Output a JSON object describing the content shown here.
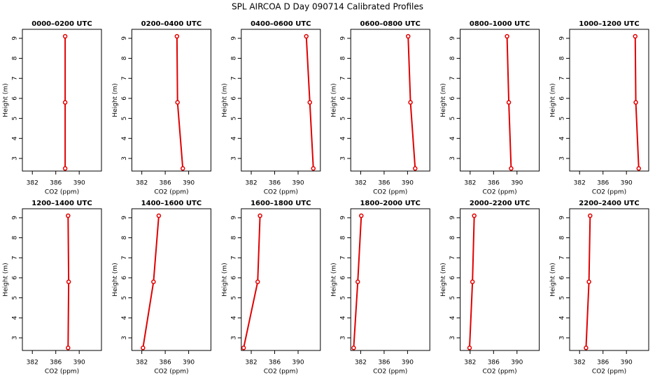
{
  "title": "SPL AIRCOA D  Day 090714  Calibrated Profiles",
  "chart_data": [
    {
      "type": "line",
      "title": "0000–0200 UTC",
      "xlabel": "CO2 (ppm)",
      "ylabel": "Height (m)",
      "color": "#e00000",
      "x": [
        387.6,
        387.6,
        387.6
      ],
      "values": [
        9.1,
        5.8,
        2.5
      ],
      "xlim": [
        380.3,
        393.8
      ],
      "ylim": [
        2.37,
        9.45
      ],
      "xticks": [
        382,
        386,
        390
      ],
      "yticks": [
        3,
        4,
        5,
        6,
        7,
        8,
        9
      ]
    },
    {
      "type": "line",
      "title": "0200–0400 UTC",
      "xlabel": "CO2 (ppm)",
      "ylabel": "Height (m)",
      "color": "#e00000",
      "x": [
        388.0,
        388.1,
        389.0
      ],
      "values": [
        9.1,
        5.8,
        2.5
      ],
      "xlim": [
        380.3,
        393.8
      ],
      "ylim": [
        2.37,
        9.45
      ],
      "xticks": [
        382,
        386,
        390
      ],
      "yticks": [
        3,
        4,
        5,
        6,
        7,
        8,
        9
      ]
    },
    {
      "type": "line",
      "title": "0400–0600 UTC",
      "xlabel": "CO2 (ppm)",
      "ylabel": "Height (m)",
      "color": "#e00000",
      "x": [
        391.4,
        392.0,
        392.6
      ],
      "values": [
        9.1,
        5.8,
        2.5
      ],
      "xlim": [
        380.3,
        393.8
      ],
      "ylim": [
        2.37,
        9.45
      ],
      "xticks": [
        382,
        386,
        390
      ],
      "yticks": [
        3,
        4,
        5,
        6,
        7,
        8,
        9
      ]
    },
    {
      "type": "line",
      "title": "0600–0800 UTC",
      "xlabel": "CO2 (ppm)",
      "ylabel": "Height (m)",
      "color": "#e00000",
      "x": [
        390.1,
        390.5,
        391.3
      ],
      "values": [
        9.1,
        5.8,
        2.5
      ],
      "xlim": [
        380.3,
        393.8
      ],
      "ylim": [
        2.37,
        9.45
      ],
      "xticks": [
        382,
        386,
        390
      ],
      "yticks": [
        3,
        4,
        5,
        6,
        7,
        8,
        9
      ]
    },
    {
      "type": "line",
      "title": "0800–1000 UTC",
      "xlabel": "CO2 (ppm)",
      "ylabel": "Height (m)",
      "color": "#e00000",
      "x": [
        388.3,
        388.6,
        389.0
      ],
      "values": [
        9.1,
        5.8,
        2.5
      ],
      "xlim": [
        380.3,
        393.8
      ],
      "ylim": [
        2.37,
        9.45
      ],
      "xticks": [
        382,
        386,
        390
      ],
      "yticks": [
        3,
        4,
        5,
        6,
        7,
        8,
        9
      ]
    },
    {
      "type": "line",
      "title": "1000–1200 UTC",
      "xlabel": "CO2 (ppm)",
      "ylabel": "Height (m)",
      "color": "#e00000",
      "x": [
        391.5,
        391.6,
        392.1
      ],
      "values": [
        9.1,
        5.8,
        2.5
      ],
      "xlim": [
        380.3,
        393.8
      ],
      "ylim": [
        2.37,
        9.45
      ],
      "xticks": [
        382,
        386,
        390
      ],
      "yticks": [
        3,
        4,
        5,
        6,
        7,
        8,
        9
      ]
    },
    {
      "type": "line",
      "title": "1200–1400 UTC",
      "xlabel": "CO2 (ppm)",
      "ylabel": "Height (m)",
      "color": "#e00000",
      "x": [
        388.1,
        388.2,
        388.1
      ],
      "values": [
        9.1,
        5.8,
        2.5
      ],
      "xlim": [
        380.3,
        393.8
      ],
      "ylim": [
        2.37,
        9.45
      ],
      "xticks": [
        382,
        386,
        390
      ],
      "yticks": [
        3,
        4,
        5,
        6,
        7,
        8,
        9
      ]
    },
    {
      "type": "line",
      "title": "1400–1600 UTC",
      "xlabel": "CO2 (ppm)",
      "ylabel": "Height (m)",
      "color": "#e00000",
      "x": [
        384.9,
        384.0,
        382.2
      ],
      "values": [
        9.1,
        5.8,
        2.5
      ],
      "xlim": [
        380.3,
        393.8
      ],
      "ylim": [
        2.37,
        9.45
      ],
      "xticks": [
        382,
        386,
        390
      ],
      "yticks": [
        3,
        4,
        5,
        6,
        7,
        8,
        9
      ]
    },
    {
      "type": "line",
      "title": "1600–1800 UTC",
      "xlabel": "CO2 (ppm)",
      "ylabel": "Height (m)",
      "color": "#e00000",
      "x": [
        383.5,
        383.1,
        380.7
      ],
      "values": [
        9.1,
        5.8,
        2.5
      ],
      "xlim": [
        380.3,
        393.8
      ],
      "ylim": [
        2.37,
        9.45
      ],
      "xticks": [
        382,
        386,
        390
      ],
      "yticks": [
        3,
        4,
        5,
        6,
        7,
        8,
        9
      ]
    },
    {
      "type": "line",
      "title": "1800–2000 UTC",
      "xlabel": "CO2 (ppm)",
      "ylabel": "Height (m)",
      "color": "#e00000",
      "x": [
        382.1,
        381.5,
        380.8
      ],
      "values": [
        9.1,
        5.8,
        2.5
      ],
      "xlim": [
        380.3,
        393.8
      ],
      "ylim": [
        2.37,
        9.45
      ],
      "xticks": [
        382,
        386,
        390
      ],
      "yticks": [
        3,
        4,
        5,
        6,
        7,
        8,
        9
      ]
    },
    {
      "type": "line",
      "title": "2000–2200 UTC",
      "xlabel": "CO2 (ppm)",
      "ylabel": "Height (m)",
      "color": "#e00000",
      "x": [
        382.7,
        382.4,
        381.9
      ],
      "values": [
        9.1,
        5.8,
        2.5
      ],
      "xlim": [
        380.3,
        393.8
      ],
      "ylim": [
        2.37,
        9.45
      ],
      "xticks": [
        382,
        386,
        390
      ],
      "yticks": [
        3,
        4,
        5,
        6,
        7,
        8,
        9
      ]
    },
    {
      "type": "line",
      "title": "2200–2400 UTC",
      "xlabel": "CO2 (ppm)",
      "ylabel": "Height (m)",
      "color": "#e00000",
      "x": [
        383.8,
        383.6,
        383.1
      ],
      "values": [
        9.1,
        5.8,
        2.5
      ],
      "xlim": [
        380.3,
        393.8
      ],
      "ylim": [
        2.37,
        9.45
      ],
      "xticks": [
        382,
        386,
        390
      ],
      "yticks": [
        3,
        4,
        5,
        6,
        7,
        8,
        9
      ]
    }
  ]
}
